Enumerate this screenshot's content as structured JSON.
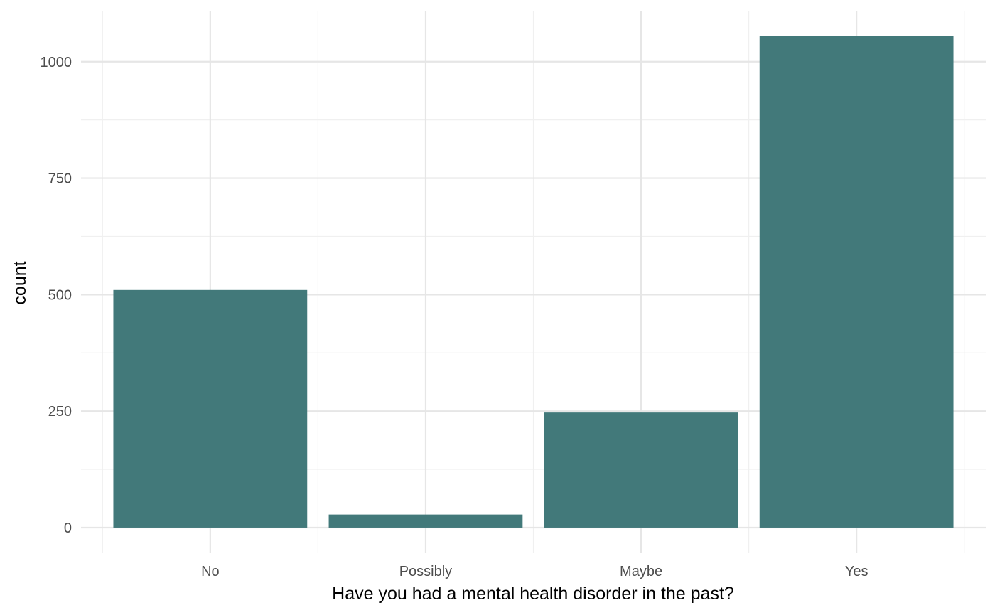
{
  "chart_data": {
    "type": "bar",
    "title": "",
    "xlabel": "Have you had a mental health disorder in the past?",
    "ylabel": "count",
    "categories": [
      "No",
      "Possibly",
      "Maybe",
      "Yes"
    ],
    "values": [
      510,
      28,
      247,
      1055
    ],
    "ylim": [
      -55,
      1108
    ],
    "yticks": [
      "0",
      "250",
      "500",
      "750",
      "1000"
    ],
    "grid": true,
    "legend": "none",
    "bar_color": "#42797a"
  }
}
